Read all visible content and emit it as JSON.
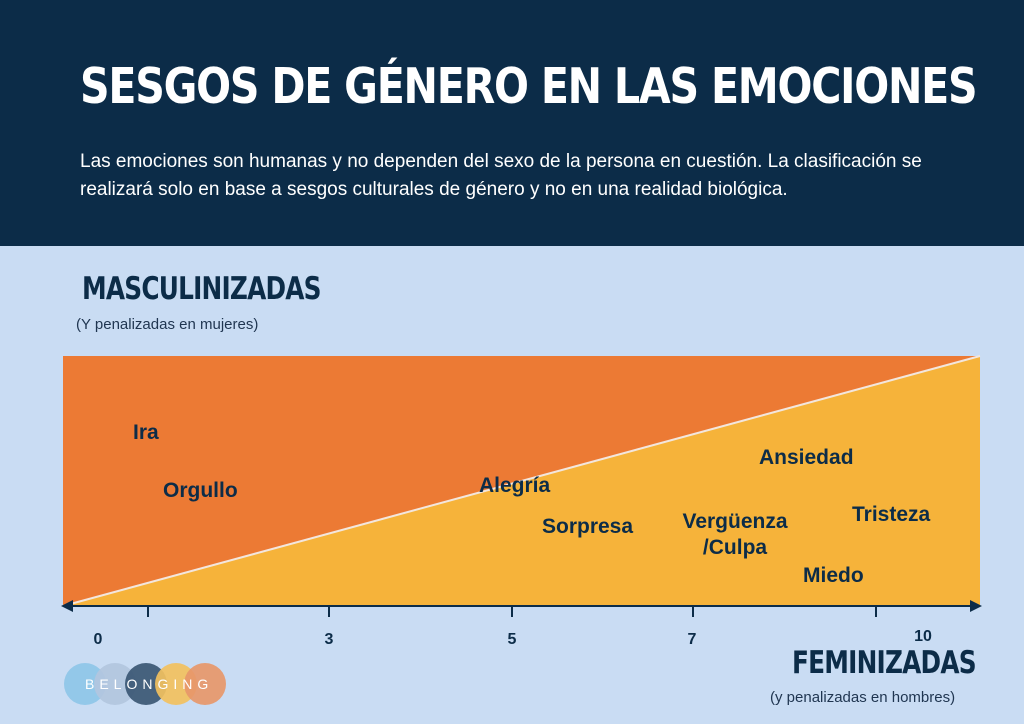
{
  "header": {
    "title": "SESGOS DE GÉNERO EN LAS EMOCIONES",
    "subtitle": "Las emociones son humanas y no dependen del sexo de la persona en cuestión. La clasificación se realizará solo en base a sesgos culturales de género y no en una realidad biológica."
  },
  "axis": {
    "top_label": "MASCULINIZADAS",
    "top_sublabel": "(Y penalizadas en mujeres)",
    "bottom_label": "FEMINIZADAS",
    "bottom_sublabel": "(y penalizadas en hombres)",
    "ticks": [
      "0",
      "3",
      "5",
      "7",
      "10"
    ]
  },
  "emotions": [
    "Ira",
    "Orgullo",
    "Alegría",
    "Sorpresa",
    "Ansiedad",
    "Vergüenza\n/Culpa",
    "Tristeza",
    "Miedo"
  ],
  "logo": {
    "text": "BELONGING"
  },
  "colors": {
    "header_bg": "#0c2c48",
    "page_bg": "#c9dcf3",
    "masculine_region": "#ec7a34",
    "feminine_region": "#f6b33a",
    "text_dark": "#0c2c48",
    "logo_dots": [
      "#8ec6e8",
      "#b2c6de",
      "#3b5774",
      "#f2c05e",
      "#e7976a"
    ]
  }
}
